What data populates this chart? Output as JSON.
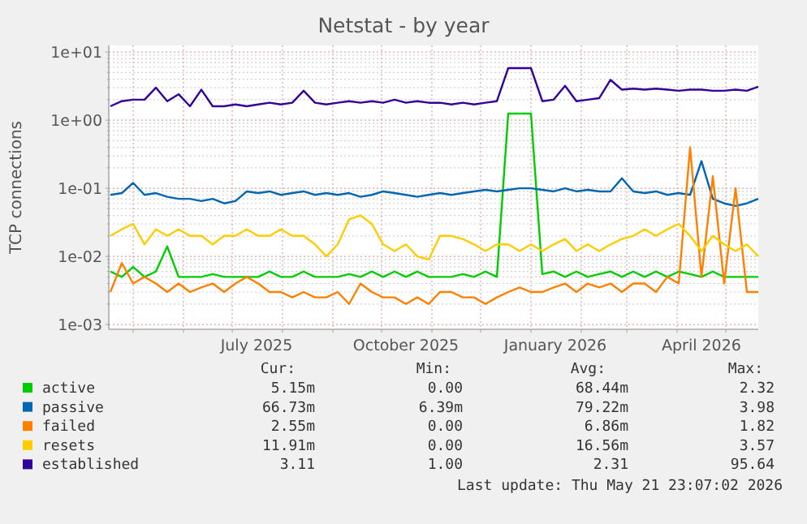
{
  "chart_data": {
    "type": "line",
    "title": "Netstat - by year",
    "ylabel": "TCP connections",
    "log": "y",
    "grid": true,
    "legend": "bottom",
    "marker": "none",
    "line_style": "solid",
    "xlim": [
      "2025-04-16",
      "2026-05-21"
    ],
    "xticks": [
      {
        "value": "2025-05-01",
        "label": null
      },
      {
        "value": "2025-06-01",
        "label": null
      },
      {
        "value": "2025-07-01",
        "label": null
      },
      {
        "value": "2025-07-16",
        "label": "July 2025"
      },
      {
        "value": "2025-08-01",
        "label": null
      },
      {
        "value": "2025-09-01",
        "label": null
      },
      {
        "value": "2025-10-01",
        "label": null
      },
      {
        "value": "2025-10-16",
        "label": "October 2025"
      },
      {
        "value": "2025-11-01",
        "label": null
      },
      {
        "value": "2025-12-01",
        "label": null
      },
      {
        "value": "2026-01-01",
        "label": null
      },
      {
        "value": "2026-01-16",
        "label": "January 2026"
      },
      {
        "value": "2026-02-01",
        "label": null
      },
      {
        "value": "2026-03-01",
        "label": null
      },
      {
        "value": "2026-04-01",
        "label": null
      },
      {
        "value": "2026-04-16",
        "label": "April 2026"
      },
      {
        "value": "2026-05-01",
        "label": null
      }
    ],
    "ylim": [
      0.00085,
      12.5
    ],
    "yticks": [
      {
        "value": 0.001,
        "label": "1e-03"
      },
      {
        "value": 0.002,
        "label": null
      },
      {
        "value": 0.003,
        "label": null
      },
      {
        "value": 0.004,
        "label": null
      },
      {
        "value": 0.005,
        "label": null
      },
      {
        "value": 0.006,
        "label": null
      },
      {
        "value": 0.007,
        "label": null
      },
      {
        "value": 0.008,
        "label": null
      },
      {
        "value": 0.009,
        "label": null
      },
      {
        "value": 0.01,
        "label": "1e-02"
      },
      {
        "value": 0.02,
        "label": null
      },
      {
        "value": 0.03,
        "label": null
      },
      {
        "value": 0.04,
        "label": null
      },
      {
        "value": 0.05,
        "label": null
      },
      {
        "value": 0.06,
        "label": null
      },
      {
        "value": 0.07,
        "label": null
      },
      {
        "value": 0.08,
        "label": null
      },
      {
        "value": 0.09,
        "label": null
      },
      {
        "value": 0.1,
        "label": "1e-01"
      },
      {
        "value": 0.2,
        "label": null
      },
      {
        "value": 0.3,
        "label": null
      },
      {
        "value": 0.4,
        "label": null
      },
      {
        "value": 0.5,
        "label": null
      },
      {
        "value": 0.6,
        "label": null
      },
      {
        "value": 0.7,
        "label": null
      },
      {
        "value": 0.8,
        "label": null
      },
      {
        "value": 0.9,
        "label": null
      },
      {
        "value": 1,
        "label": "1e+00"
      },
      {
        "value": 2,
        "label": null
      },
      {
        "value": 3,
        "label": null
      },
      {
        "value": 4,
        "label": null
      },
      {
        "value": 5,
        "label": null
      },
      {
        "value": 6,
        "label": null
      },
      {
        "value": 7,
        "label": null
      },
      {
        "value": 8,
        "label": null
      },
      {
        "value": 9,
        "label": null
      },
      {
        "value": 10,
        "label": "1e+01"
      }
    ],
    "x": [
      "2025-04-17",
      "2025-04-24",
      "2025-05-01",
      "2025-05-08",
      "2025-05-15",
      "2025-05-22",
      "2025-05-29",
      "2025-06-05",
      "2025-06-12",
      "2025-06-19",
      "2025-06-26",
      "2025-07-03",
      "2025-07-10",
      "2025-07-17",
      "2025-07-24",
      "2025-07-31",
      "2025-08-07",
      "2025-08-14",
      "2025-08-21",
      "2025-08-28",
      "2025-09-04",
      "2025-09-11",
      "2025-09-18",
      "2025-09-25",
      "2025-10-02",
      "2025-10-09",
      "2025-10-16",
      "2025-10-23",
      "2025-10-30",
      "2025-11-06",
      "2025-11-13",
      "2025-11-20",
      "2025-11-27",
      "2025-12-04",
      "2025-12-11",
      "2025-12-18",
      "2025-12-25",
      "2026-01-01",
      "2026-01-08",
      "2026-01-15",
      "2026-01-22",
      "2026-01-29",
      "2026-02-05",
      "2026-02-12",
      "2026-02-19",
      "2026-02-26",
      "2026-03-05",
      "2026-03-12",
      "2026-03-19",
      "2026-03-26",
      "2026-04-02",
      "2026-04-09",
      "2026-04-16",
      "2026-04-23",
      "2026-04-30",
      "2026-05-07",
      "2026-05-14",
      "2026-05-21"
    ],
    "series": [
      {
        "name": "active",
        "color": "#00cc00",
        "values": [
          0.006,
          0.005,
          0.007,
          0.005,
          0.006,
          0.014,
          0.005,
          0.005,
          0.005,
          0.0055,
          0.005,
          0.005,
          0.005,
          0.005,
          0.006,
          0.005,
          0.005,
          0.006,
          0.005,
          0.005,
          0.005,
          0.0055,
          0.005,
          0.006,
          0.005,
          0.006,
          0.005,
          0.006,
          0.005,
          0.005,
          0.005,
          0.0055,
          0.005,
          0.006,
          0.005,
          1.25,
          1.25,
          1.25,
          0.0055,
          0.006,
          0.005,
          0.006,
          0.005,
          0.0055,
          0.006,
          0.005,
          0.006,
          0.005,
          0.006,
          0.005,
          0.006,
          0.0055,
          0.005,
          0.006,
          0.005,
          0.005,
          0.005,
          0.005
        ]
      },
      {
        "name": "passive",
        "color": "#0066b3",
        "values": [
          0.08,
          0.085,
          0.12,
          0.08,
          0.085,
          0.075,
          0.07,
          0.07,
          0.065,
          0.07,
          0.06,
          0.065,
          0.09,
          0.085,
          0.09,
          0.08,
          0.085,
          0.09,
          0.08,
          0.085,
          0.08,
          0.085,
          0.075,
          0.08,
          0.09,
          0.085,
          0.08,
          0.075,
          0.08,
          0.085,
          0.08,
          0.085,
          0.09,
          0.095,
          0.09,
          0.095,
          0.1,
          0.1,
          0.095,
          0.09,
          0.1,
          0.09,
          0.095,
          0.09,
          0.09,
          0.14,
          0.09,
          0.085,
          0.09,
          0.08,
          0.085,
          0.08,
          0.25,
          0.07,
          0.06,
          0.055,
          0.06,
          0.07
        ]
      },
      {
        "name": "failed",
        "color": "#ff8000",
        "values": [
          0.003,
          0.008,
          0.004,
          0.005,
          0.004,
          0.003,
          0.004,
          0.003,
          0.0035,
          0.004,
          0.003,
          0.004,
          0.005,
          0.004,
          0.003,
          0.003,
          0.0025,
          0.003,
          0.0025,
          0.0025,
          0.003,
          0.002,
          0.004,
          0.003,
          0.0025,
          0.0025,
          0.002,
          0.0025,
          0.002,
          0.003,
          0.003,
          0.0025,
          0.0025,
          0.002,
          0.0025,
          0.003,
          0.0035,
          0.003,
          0.003,
          0.0035,
          0.004,
          0.003,
          0.004,
          0.0035,
          0.004,
          0.003,
          0.004,
          0.004,
          0.003,
          0.005,
          0.004,
          0.4,
          0.005,
          0.15,
          0.004,
          0.1,
          0.003,
          0.003
        ]
      },
      {
        "name": "resets",
        "color": "#ffcc00",
        "values": [
          0.02,
          0.025,
          0.03,
          0.015,
          0.025,
          0.02,
          0.025,
          0.02,
          0.02,
          0.015,
          0.02,
          0.02,
          0.025,
          0.02,
          0.02,
          0.025,
          0.02,
          0.02,
          0.015,
          0.01,
          0.015,
          0.035,
          0.04,
          0.03,
          0.015,
          0.012,
          0.015,
          0.01,
          0.009,
          0.02,
          0.02,
          0.018,
          0.015,
          0.012,
          0.015,
          0.015,
          0.012,
          0.015,
          0.012,
          0.015,
          0.018,
          0.012,
          0.015,
          0.012,
          0.015,
          0.018,
          0.02,
          0.025,
          0.02,
          0.025,
          0.03,
          0.02,
          0.012,
          0.02,
          0.015,
          0.012,
          0.015,
          0.01
        ]
      },
      {
        "name": "established",
        "color": "#330099",
        "values": [
          1.6,
          1.9,
          2.0,
          2.0,
          3.0,
          1.9,
          2.4,
          1.6,
          2.8,
          1.6,
          1.6,
          1.7,
          1.6,
          1.7,
          1.8,
          1.7,
          1.8,
          2.7,
          1.8,
          1.7,
          1.8,
          1.9,
          1.8,
          1.9,
          1.8,
          2.0,
          1.8,
          1.9,
          1.8,
          1.8,
          1.7,
          1.8,
          1.7,
          1.8,
          1.9,
          5.8,
          5.8,
          5.8,
          1.9,
          2.0,
          3.2,
          1.9,
          2.0,
          2.1,
          3.9,
          2.8,
          2.9,
          2.8,
          2.9,
          2.8,
          2.7,
          2.8,
          2.8,
          2.7,
          2.7,
          2.8,
          2.7,
          3.1
        ]
      }
    ],
    "annotations": [
      "Cur:",
      "Min:",
      "Avg:",
      "Max:",
      "5.15m",
      "0.00",
      "68.44m",
      "2.32",
      "66.73m",
      "6.39m",
      "79.22m",
      "3.98",
      "2.55m",
      "0.00",
      "6.86m",
      "1.82",
      "11.91m",
      "0.00",
      "16.56m",
      "3.57",
      "3.11",
      "1.00",
      "2.31",
      "95.64",
      "Last update: Thu May 21 23:07:02 2026"
    ]
  }
}
